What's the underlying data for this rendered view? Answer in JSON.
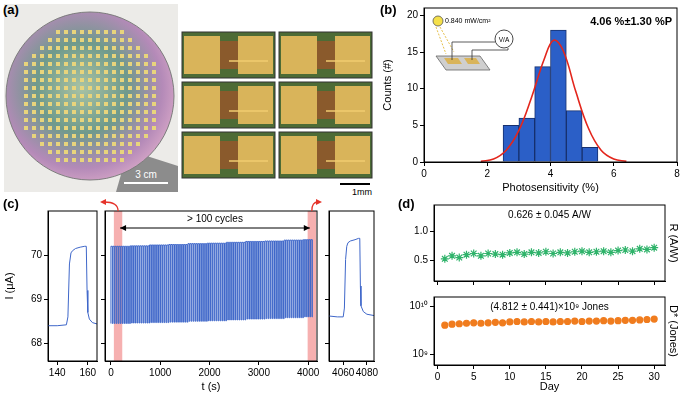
{
  "photo": {
    "panel": "(a)",
    "scale_bars": [
      "3 cm",
      "1mm"
    ]
  },
  "chart_data": [
    {
      "panel": "(b)",
      "type": "histogram",
      "bins": [
        2.5,
        3,
        3.5,
        4,
        4.5,
        5,
        5.5
      ],
      "counts": [
        5,
        6,
        13,
        18,
        7,
        2
      ],
      "color": "#2b5fc7",
      "fit": {
        "type": "line",
        "color": "#e3261c",
        "x": [
          1.8,
          2.2,
          2.6,
          3.0,
          3.4,
          3.8,
          4.1,
          4.4,
          4.8,
          5.2,
          5.6,
          6.0,
          6.4
        ],
        "values": [
          0.1,
          0.4,
          1.6,
          4.3,
          8.8,
          14.0,
          16.6,
          15.2,
          9.6,
          4.6,
          1.6,
          0.4,
          0.1
        ]
      },
      "xlabel": "Photosensitivity (%)",
      "ylabel": "Counts (#)",
      "xlim": [
        0,
        8
      ],
      "xticks": [
        0,
        2,
        4,
        6,
        8
      ],
      "ylim": [
        0,
        21
      ],
      "yticks": [
        0,
        5,
        10,
        15,
        20
      ],
      "annotations": [
        "4.06 %±1.30 %P"
      ],
      "inset": {
        "irradiance": "0.840 mW/cm²",
        "meter": "V/A"
      }
    },
    {
      "panel": "(c)",
      "type": "line",
      "color": "#3f67c9",
      "ylabel": "I (μA)",
      "x": [
        134,
        140,
        146,
        147,
        148,
        149,
        150,
        152,
        155,
        158,
        159,
        159.5,
        160,
        161,
        163,
        166
      ],
      "values": [
        68.4,
        68.4,
        68.42,
        68.6,
        69.8,
        70.05,
        70.1,
        70.15,
        70.18,
        70.2,
        70.2,
        69.2,
        68.7,
        68.55,
        68.47,
        68.44
      ],
      "xlim": [
        134,
        166
      ],
      "xticks": [
        140,
        160
      ],
      "ylim": [
        67.6,
        71.0
      ],
      "yticks": [
        68,
        69,
        70
      ]
    },
    {
      "type": "line",
      "color": "#3f67c9",
      "line_style": "steps",
      "xlabel": "t (s)",
      "tick_labels": "x",
      "annotations": [
        "> 100 cycles"
      ],
      "highlights": [
        [
          60,
          230
        ],
        [
          3990,
          4160
        ]
      ],
      "x": [
        0,
        30,
        42,
        69,
        81,
        108,
        120,
        147,
        159,
        186,
        198,
        225,
        237,
        264,
        276,
        303,
        315,
        342,
        354,
        381,
        393,
        420,
        432,
        459,
        471,
        498,
        510,
        537,
        549,
        576,
        588,
        615,
        627,
        654,
        666,
        693,
        705,
        732,
        744,
        771,
        783,
        810,
        822,
        849,
        861,
        888,
        900,
        927,
        939,
        966,
        978,
        1005,
        1017,
        1044,
        1056,
        1083,
        1095,
        1122,
        1134,
        1161,
        1173,
        1200,
        1212,
        1239,
        1251,
        1278,
        1290,
        1317,
        1329,
        1356,
        1368,
        1395,
        1407,
        1434,
        1446,
        1473,
        1485,
        1512,
        1524,
        1551,
        1563,
        1590,
        1602,
        1629,
        1641,
        1668,
        1680,
        1707,
        1719,
        1746,
        1758,
        1785,
        1797,
        1824,
        1836,
        1863,
        1875,
        1902,
        1914,
        1941,
        1953,
        1980,
        1992,
        2019,
        2031,
        2058,
        2070,
        2097,
        2109,
        2136,
        2148,
        2175,
        2187,
        2214,
        2226,
        2253,
        2265,
        2292,
        2304,
        2331,
        2343,
        2370,
        2382,
        2409,
        2421,
        2448,
        2460,
        2487,
        2499,
        2526,
        2538,
        2565,
        2577,
        2604,
        2616,
        2643,
        2655,
        2682,
        2694,
        2721,
        2733,
        2760,
        2772,
        2799,
        2811,
        2838,
        2850,
        2877,
        2889,
        2916,
        2928,
        2955,
        2967,
        2994,
        3006,
        3033,
        3045,
        3072,
        3084,
        3111,
        3123,
        3150,
        3162,
        3189,
        3201,
        3228,
        3240,
        3267,
        3279,
        3306,
        3318,
        3345,
        3357,
        3384,
        3396,
        3423,
        3435,
        3462,
        3474,
        3501,
        3513,
        3540,
        3552,
        3579,
        3591,
        3618,
        3630,
        3657,
        3669,
        3696,
        3708,
        3735,
        3747,
        3774,
        3786,
        3813,
        3825,
        3852,
        3864,
        3891,
        3903,
        3930,
        3942,
        3969,
        3981,
        4008,
        4020,
        4047,
        4059,
        4086,
        4098
      ],
      "values": [
        68.45,
        70.2,
        68.45,
        70.2,
        68.45,
        70.2,
        68.45,
        70.2,
        68.45,
        70.2,
        68.45,
        70.2,
        68.45,
        70.2,
        68.45,
        70.2,
        68.45,
        70.2,
        68.45,
        70.2,
        68.45,
        70.21,
        68.46,
        70.21,
        68.46,
        70.21,
        68.46,
        70.21,
        68.46,
        70.21,
        68.46,
        70.21,
        68.46,
        70.21,
        68.46,
        70.21,
        68.46,
        70.21,
        68.46,
        70.21,
        68.46,
        70.23,
        68.47,
        70.23,
        68.47,
        70.23,
        68.47,
        70.23,
        68.47,
        70.23,
        68.47,
        70.23,
        68.47,
        70.23,
        68.47,
        70.23,
        68.47,
        70.23,
        68.47,
        70.23,
        68.47,
        70.24,
        68.48,
        70.24,
        68.48,
        70.24,
        68.48,
        70.24,
        68.48,
        70.24,
        68.48,
        70.24,
        68.48,
        70.24,
        68.48,
        70.24,
        68.48,
        70.24,
        68.48,
        70.24,
        68.48,
        70.26,
        68.5,
        70.26,
        68.5,
        70.26,
        68.5,
        70.26,
        68.5,
        70.26,
        68.5,
        70.26,
        68.5,
        70.26,
        68.5,
        70.26,
        68.5,
        70.26,
        68.5,
        70.26,
        68.5,
        70.27,
        68.51,
        70.27,
        68.51,
        70.27,
        68.51,
        70.27,
        68.51,
        70.27,
        68.51,
        70.27,
        68.51,
        70.27,
        68.51,
        70.27,
        68.51,
        70.27,
        68.51,
        70.27,
        68.51,
        70.29,
        68.53,
        70.29,
        68.53,
        70.29,
        68.53,
        70.29,
        68.53,
        70.29,
        68.53,
        70.29,
        68.53,
        70.29,
        68.53,
        70.29,
        68.53,
        70.29,
        68.53,
        70.29,
        68.53,
        70.31,
        68.55,
        70.31,
        68.55,
        70.31,
        68.55,
        70.31,
        68.55,
        70.31,
        68.55,
        70.31,
        68.55,
        70.31,
        68.55,
        70.31,
        68.55,
        70.31,
        68.55,
        70.31,
        68.55,
        70.32,
        68.56,
        70.32,
        68.56,
        70.32,
        68.56,
        70.32,
        68.56,
        70.32,
        68.56,
        70.32,
        68.56,
        70.32,
        68.56,
        70.32,
        68.56,
        70.32,
        68.56,
        70.32,
        68.56,
        70.34,
        68.58,
        70.34,
        68.58,
        70.34,
        68.58,
        70.34,
        68.58,
        70.34,
        68.58,
        70.34,
        68.58,
        70.34,
        68.58,
        70.34,
        68.58,
        70.34,
        68.58,
        70.34,
        68.58,
        70.35,
        68.6,
        70.35,
        68.6,
        70.35,
        68.6,
        70.35,
        68.6,
        70.35,
        68.6
      ],
      "xlim": [
        -120,
        4180
      ],
      "xticks": [
        0,
        1000,
        2000,
        3000,
        4000
      ],
      "ylim": [
        67.6,
        71.0
      ],
      "yticks": [
        68,
        69,
        70
      ]
    },
    {
      "type": "line",
      "color": "#3f67c9",
      "tick_labels": "x",
      "x": [
        4048,
        4055,
        4060,
        4061,
        4062,
        4063,
        4064,
        4066,
        4070,
        4073,
        4074,
        4074.5,
        4075,
        4077,
        4080,
        4086
      ],
      "values": [
        68.62,
        68.6,
        68.6,
        68.8,
        69.9,
        70.2,
        70.28,
        70.32,
        70.35,
        70.38,
        70.38,
        69.3,
        68.85,
        68.72,
        68.66,
        68.63
      ],
      "xlim": [
        4048,
        4086
      ],
      "xticks": [
        4060,
        4080
      ],
      "ylim": [
        67.6,
        71.0
      ],
      "yticks": [
        68,
        69,
        70
      ]
    },
    {
      "panel": "(d)",
      "type": "scatter",
      "color": "#2fb36a",
      "marker": "star",
      "ylabel": "R (A/W)",
      "tick_labels": "y",
      "x": [
        1,
        2,
        3,
        4,
        5,
        6,
        7,
        8,
        9,
        10,
        11,
        12,
        13,
        14,
        15,
        16,
        17,
        18,
        19,
        20,
        21,
        22,
        23,
        24,
        25,
        26,
        27,
        28,
        29,
        30
      ],
      "values": [
        0.53,
        0.58,
        0.55,
        0.6,
        0.62,
        0.58,
        0.62,
        0.61,
        0.6,
        0.63,
        0.64,
        0.61,
        0.64,
        0.63,
        0.65,
        0.62,
        0.64,
        0.63,
        0.65,
        0.66,
        0.64,
        0.65,
        0.66,
        0.64,
        0.67,
        0.68,
        0.66,
        0.7,
        0.69,
        0.72
      ],
      "xlim": [
        -0.5,
        31.5
      ],
      "xticks": [
        0,
        5,
        10,
        15,
        20,
        25,
        30
      ],
      "ylim": [
        0.15,
        1.45
      ],
      "yticks": [
        0.5,
        {
          "value": 1,
          "label": "1.0"
        }
      ],
      "annotations": [
        "0.626 ± 0.045 A/W"
      ]
    },
    {
      "type": "scatter",
      "color": "#f07c1e",
      "marker": "circle",
      "log": "y",
      "xlabel": "Day",
      "ylabel": "D* (Jones)",
      "x": [
        1,
        2,
        3,
        4,
        5,
        6,
        7,
        8,
        9,
        10,
        11,
        12,
        13,
        14,
        15,
        16,
        17,
        18,
        19,
        20,
        21,
        22,
        23,
        24,
        25,
        26,
        27,
        28,
        29,
        30
      ],
      "values": [
        4100000000.0,
        4300000000.0,
        4400000000.0,
        4500000000.0,
        4600000000.0,
        4500000000.0,
        4600000000.0,
        4700000000.0,
        4600000000.0,
        4800000000.0,
        4900000000.0,
        4800000000.0,
        4900000000.0,
        4800000000.0,
        4900000000.0,
        4800000000.0,
        4900000000.0,
        4900000000.0,
        5000000000.0,
        4900000000.0,
        5000000000.0,
        5000000000.0,
        5100000000.0,
        5000000000.0,
        5100000000.0,
        5200000000.0,
        5200000000.0,
        5300000000.0,
        5400000000.0,
        5500000000.0
      ],
      "xlim": [
        -0.5,
        31.5
      ],
      "xticks": [
        0,
        5,
        10,
        15,
        20,
        25,
        30
      ],
      "ylim": [
        600000000.0,
        16000000000.0
      ],
      "yticks": [
        {
          "value": 1000000000.0,
          "label": "10⁹"
        },
        {
          "value": 10000000000.0,
          "label": "10¹⁰"
        }
      ],
      "annotations": [
        "(4.812 ± 0.441)×10⁹ Jones"
      ]
    }
  ]
}
